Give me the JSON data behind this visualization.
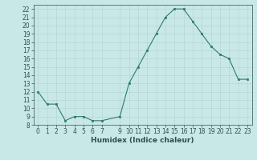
{
  "x": [
    0,
    1,
    2,
    3,
    4,
    5,
    6,
    7,
    9,
    10,
    11,
    12,
    13,
    14,
    15,
    16,
    17,
    18,
    19,
    20,
    21,
    22,
    23
  ],
  "y": [
    12,
    10.5,
    10.5,
    8.5,
    9,
    9,
    8.5,
    8.5,
    9,
    13,
    15,
    17,
    19,
    21,
    22,
    22,
    20.5,
    19,
    17.5,
    16.5,
    16,
    13.5,
    13.5
  ],
  "xlabel": "Humidex (Indice chaleur)",
  "xlim": [
    -0.5,
    23.5
  ],
  "ylim": [
    8,
    22.5
  ],
  "yticks": [
    8,
    9,
    10,
    11,
    12,
    13,
    14,
    15,
    16,
    17,
    18,
    19,
    20,
    21,
    22
  ],
  "xticks": [
    0,
    1,
    2,
    3,
    4,
    5,
    6,
    7,
    9,
    10,
    11,
    12,
    13,
    14,
    15,
    16,
    17,
    18,
    19,
    20,
    21,
    22,
    23
  ],
  "line_color": "#2d7a6e",
  "marker_color": "#2d7a6e",
  "bg_color": "#c8e8e8",
  "grid_color": "#b8d4d4",
  "tick_label_color": "#2d5050",
  "xlabel_color": "#2d5050",
  "label_fontsize": 6.5,
  "tick_fontsize": 5.5
}
